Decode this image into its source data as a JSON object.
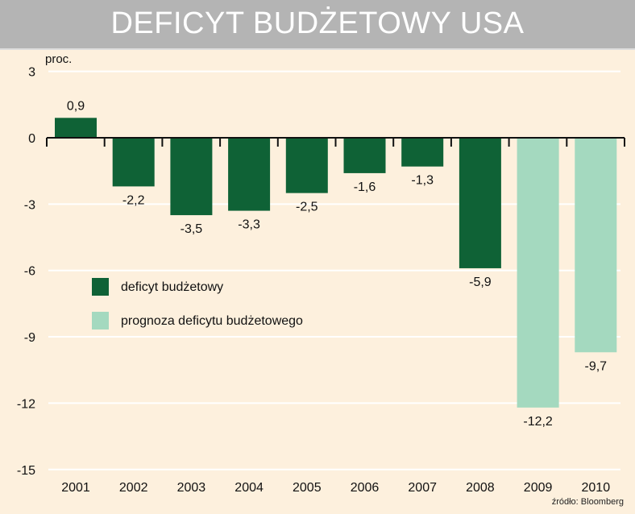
{
  "chart_data": {
    "type": "bar",
    "title": "DEFICYT BUDŻETOWY USA",
    "ylabel": "proc.",
    "ylim": [
      -15,
      3
    ],
    "yticks": [
      3,
      0,
      -3,
      -6,
      -9,
      -12,
      -15
    ],
    "grid": true,
    "categories": [
      "2001",
      "2002",
      "2003",
      "2004",
      "2005",
      "2006",
      "2007",
      "2008",
      "2009",
      "2010"
    ],
    "values": [
      0.9,
      -2.2,
      -3.5,
      -3.3,
      -2.5,
      -1.6,
      -1.3,
      -5.9,
      -12.2,
      -9.7
    ],
    "labels": [
      "0,9",
      "-2,2",
      "-3,5",
      "-3,3",
      "-2,5",
      "-1,6",
      "-1,3",
      "-5,9",
      "-12,2",
      "-9,7"
    ],
    "series_type": [
      "actual",
      "actual",
      "actual",
      "actual",
      "actual",
      "actual",
      "actual",
      "actual",
      "forecast",
      "forecast"
    ],
    "legend": [
      {
        "name": "deficyt budżetowy",
        "key": "actual",
        "color": "#0f6236"
      },
      {
        "name": "prognoza deficytu budżetowego",
        "key": "forecast",
        "color": "#a4d9bf"
      }
    ],
    "legend_position": "middle-left",
    "source": "źródło: Bloomberg"
  }
}
